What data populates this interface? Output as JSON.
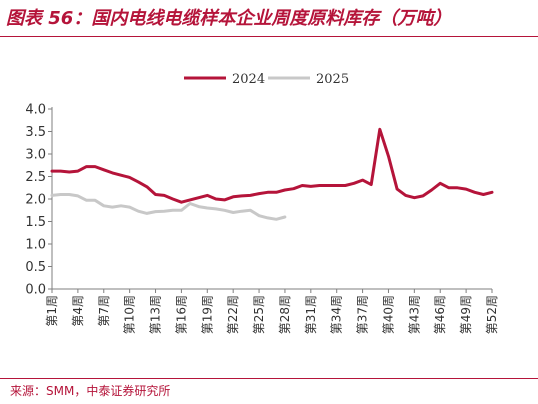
{
  "title": "图表 56：国内电线电缆样本企业周度原料库存（万吨）",
  "source": "来源：SMM，中泰证券研究所",
  "chart_data": {
    "type": "line",
    "title": "图表 56：国内电线电缆样本企业周度原料库存（万吨）",
    "xlabel": "",
    "ylabel": "",
    "ylim": [
      0,
      4.0
    ],
    "yticks": [
      "0.0",
      "0.5",
      "1.0",
      "1.5",
      "2.0",
      "2.5",
      "3.0",
      "3.5",
      "4.0"
    ],
    "grid": false,
    "legend_position": "top-center",
    "x_tick_labels": [
      "第1周",
      "第4周",
      "第7周",
      "第10周",
      "第13周",
      "第16周",
      "第19周",
      "第22周",
      "第25周",
      "第28周",
      "第31周",
      "第34周",
      "第37周",
      "第40周",
      "第43周",
      "第46周",
      "第49周",
      "第52周"
    ],
    "series": [
      {
        "name": "2024",
        "color": "#b5143a",
        "values": [
          2.62,
          2.62,
          2.6,
          2.62,
          2.72,
          2.72,
          2.65,
          2.58,
          2.53,
          2.48,
          2.38,
          2.27,
          2.1,
          2.08,
          2.0,
          1.93,
          1.98,
          2.03,
          2.08,
          2.0,
          1.98,
          2.05,
          2.07,
          2.08,
          2.12,
          2.15,
          2.15,
          2.2,
          2.23,
          2.3,
          2.28,
          2.3,
          2.3,
          2.3,
          2.3,
          2.35,
          2.42,
          2.32,
          3.55,
          2.95,
          2.22,
          2.08,
          2.03,
          2.07,
          2.2,
          2.35,
          2.25,
          2.25,
          2.22,
          2.15,
          2.1,
          2.15
        ]
      },
      {
        "name": "2025",
        "color": "#c8c8c8",
        "values": [
          2.08,
          2.1,
          2.1,
          2.07,
          1.97,
          1.97,
          1.85,
          1.82,
          1.85,
          1.82,
          1.73,
          1.68,
          1.72,
          1.73,
          1.75,
          1.75,
          1.9,
          1.83,
          1.8,
          1.78,
          1.75,
          1.7,
          1.73,
          1.75,
          1.63,
          1.58,
          1.55,
          1.6
        ]
      }
    ]
  }
}
